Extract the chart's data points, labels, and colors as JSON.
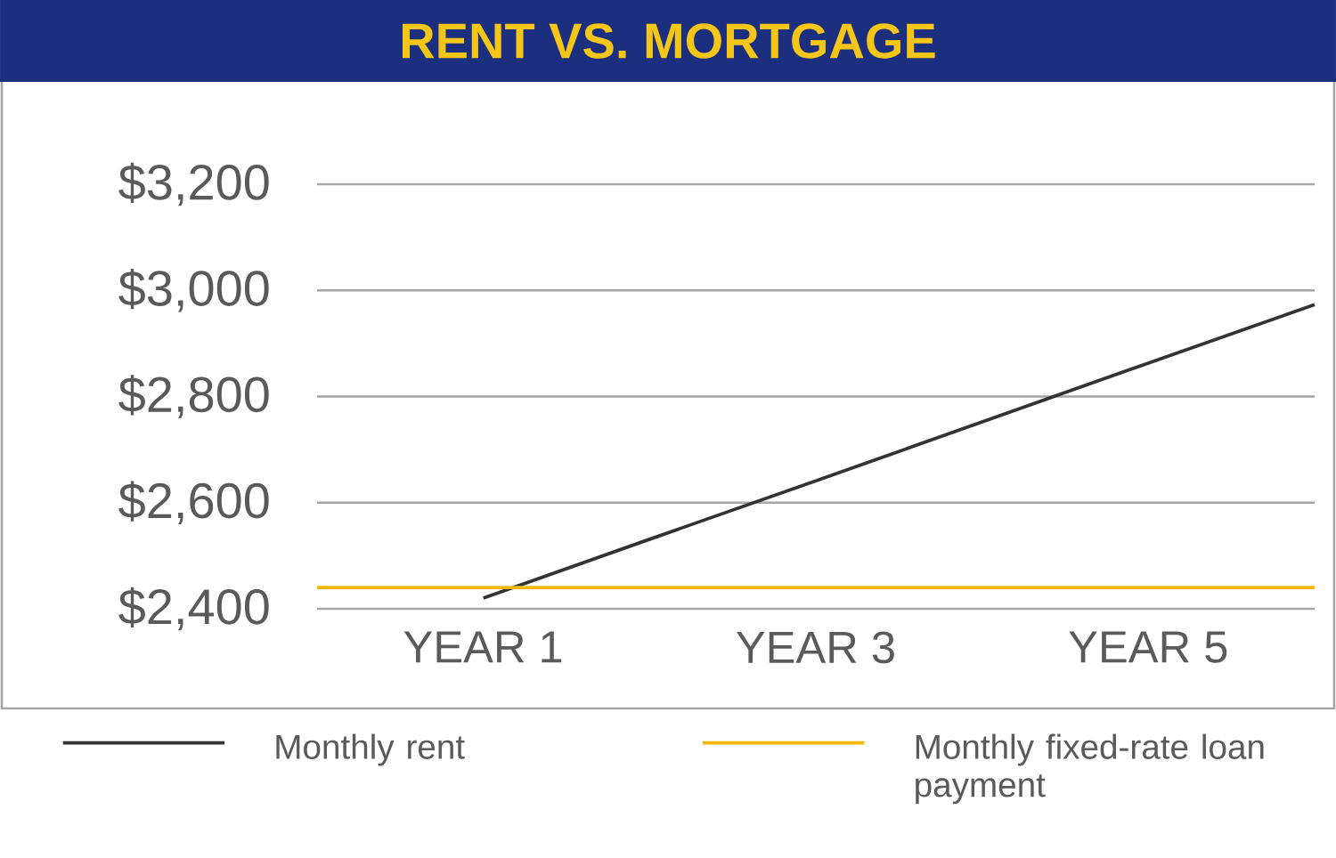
{
  "chart_data": {
    "type": "line",
    "title": "RENT VS. MORTGAGE",
    "categories": [
      null,
      "YEAR 1",
      null,
      "YEAR 3",
      null,
      "YEAR 5",
      null
    ],
    "ylim": [
      2400,
      3200
    ],
    "yticks": [
      {
        "value": 2400,
        "label": "$2,400"
      },
      {
        "value": 2600,
        "label": "$2,600"
      },
      {
        "value": 2800,
        "label": "$2,800"
      },
      {
        "value": 3000,
        "label": "$3,000"
      },
      {
        "value": 3200,
        "label": "$3,200"
      }
    ],
    "grid": "y",
    "legend": "bottom",
    "marker": "none",
    "series": [
      {
        "name": "Monthly rent",
        "color": "#333333",
        "values": [
          null,
          2420,
          2531,
          2641,
          2752,
          2863,
          2973
        ]
      },
      {
        "name": "Monthly fixed-rate loan payment",
        "color": "#f2b705",
        "values": [
          2440,
          2440,
          2440,
          2440,
          2440,
          2440,
          2440
        ]
      }
    ]
  }
}
